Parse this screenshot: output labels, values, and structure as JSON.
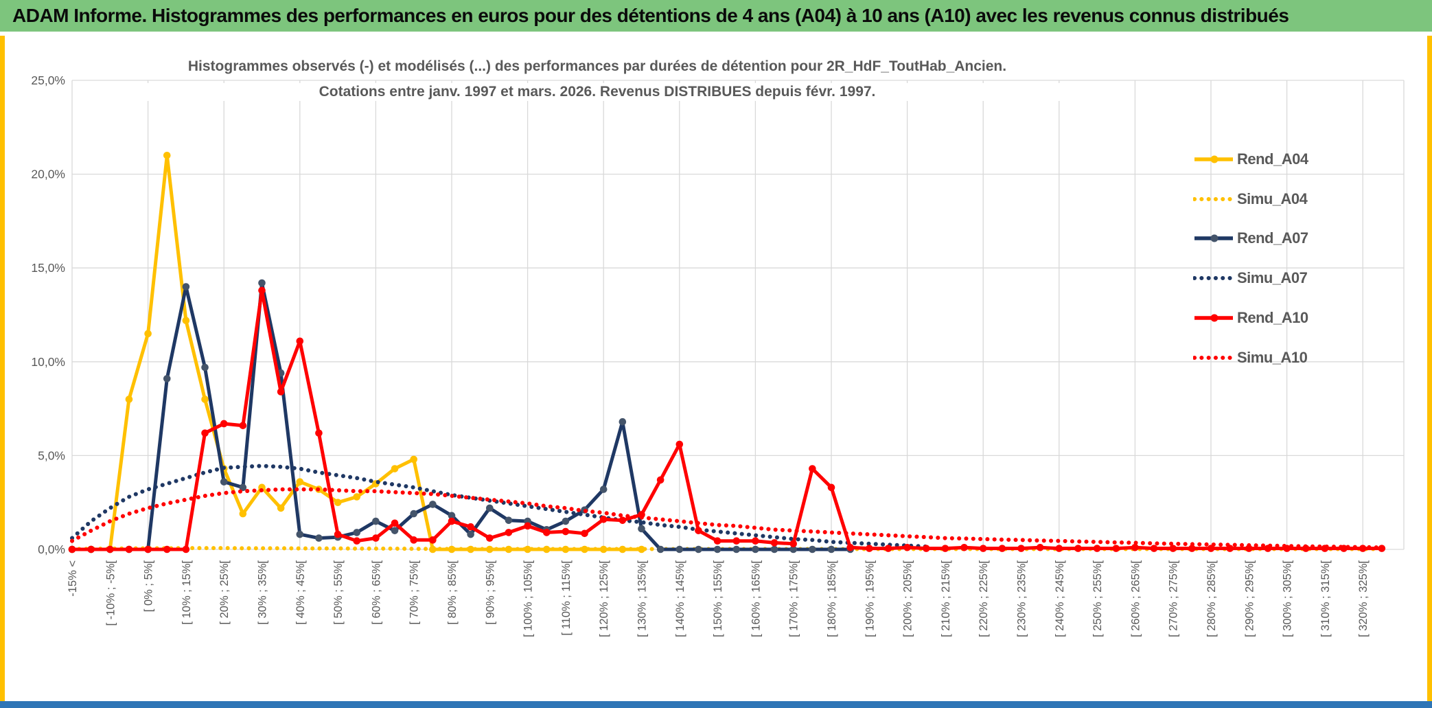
{
  "window": {
    "header_title": "ADAM Informe. Histogrammes des performances en euros pour des détentions de 4 ans (A04) à 10 ans (A10) avec les revenus connus distribués"
  },
  "colors": {
    "header_green": "#7DC57D",
    "sheet_border_gold": "#FFC000",
    "bottom_bar_blue": "#2E75B6",
    "grid_gray": "#D9D9D9",
    "text_gray": "#595959",
    "gold": "#FFC000",
    "navy": "#1F3864",
    "navy_marker": "#44546A",
    "red": "#FF0000"
  },
  "chart_data": {
    "type": "line",
    "title_line1": "Histogrammes observés (-) et modélisés (...) des performances par durées de détention pour 2R_HdF_ToutHab_Ancien.",
    "title_line2": "Cotations entre janv. 1997 et mars. 2026. Revenus DISTRIBUES depuis févr. 1997.",
    "ylim": [
      0,
      25
    ],
    "grid": true,
    "legend_position": "right",
    "ytick_labels": [
      "0,0%",
      "5,0%",
      "10,0%",
      "15,0%",
      "20,0%",
      "25,0%"
    ],
    "bin_count": 70,
    "label_every_other_bin": true,
    "x_labels": [
      "-15% <",
      "[ -10% ; -5%[",
      "[ 0% ; 5%[",
      "[ 10% ; 15%[",
      "[ 20% ; 25%[",
      "[ 30% ; 35%[",
      "[ 40% ; 45%[",
      "[ 50% ; 55%[",
      "[ 60% ; 65%[",
      "[ 70% ; 75%[",
      "[ 80% ; 85%[",
      "[ 90% ; 95%[",
      "[ 100% ; 105%[",
      "[ 110% ; 115%[",
      "[ 120% ; 125%[",
      "[ 130% ; 135%[",
      "[ 140% ; 145%[",
      "[ 150% ; 155%[",
      "[ 160% ; 165%[",
      "[ 170% ; 175%[",
      "[ 180% ; 185%[",
      "[ 190% ; 195%[",
      "[ 200% ; 205%[",
      "[ 210% ; 215%[",
      "[ 220% ; 225%[",
      "[ 230% ; 235%[",
      "[ 240% ; 245%[",
      "[ 250% ; 255%[",
      "[ 260% ; 265%[",
      "[ 270% ; 275%[",
      "[ 280% ; 285%[",
      "[ 290% ; 295%[",
      "[ 300% ; 305%[",
      "[ 310% ; 315%[",
      "[ 320% ; 325%["
    ],
    "series": [
      {
        "name": "Rend_A04",
        "style": "solid",
        "color": "#FFC000",
        "marker_color": "#FFC000",
        "values": [
          0,
          0,
          0,
          8.0,
          11.5,
          21.0,
          12.2,
          8.0,
          4.3,
          1.9,
          3.3,
          2.2,
          3.6,
          3.2,
          2.5,
          2.8,
          3.5,
          4.3,
          4.8,
          0,
          0,
          0,
          0,
          0,
          0,
          0,
          0,
          0,
          0,
          0,
          0,
          null,
          null,
          null,
          null,
          null,
          null,
          null,
          null,
          null,
          null,
          null,
          null,
          null,
          null,
          null,
          null,
          null,
          null,
          null,
          null,
          null,
          null,
          null,
          null,
          null,
          null,
          null,
          null,
          null,
          null,
          null,
          null,
          null,
          null,
          null,
          null,
          null,
          null,
          null
        ]
      },
      {
        "name": "Simu_A04",
        "style": "dotted",
        "color": "#FFC000",
        "values": [
          0.02,
          0.03,
          0.04,
          0.05,
          0.06,
          0.06,
          0.07,
          0.07,
          0.07,
          0.06,
          0.06,
          0.06,
          0.05,
          0.05,
          0.05,
          0.04,
          0.04,
          0.04,
          0.03,
          0.03,
          0.02,
          0.02,
          0.02,
          0.02,
          0.02,
          0.02,
          0.02,
          0.02,
          0.02,
          0.02,
          0.02,
          0.02,
          0.02,
          0.02,
          0.02,
          0.02,
          0.02,
          0.02,
          0.02,
          0.02,
          0.02,
          0.02,
          0.02,
          0.02,
          0.02,
          0.02,
          0.02,
          0.02,
          0.02,
          0.02,
          0.02,
          0.02,
          0.02,
          0.02,
          0.02,
          0.02,
          0.02,
          0.02,
          0.02,
          0.02,
          0.02,
          0.02,
          0.02,
          0.02,
          0.02,
          0.02,
          0.02,
          0.02,
          0.02,
          0.02
        ]
      },
      {
        "name": "Rend_A07",
        "style": "solid",
        "color": "#1F3864",
        "marker_color": "#44546A",
        "values": [
          0,
          0,
          0,
          0,
          0,
          9.1,
          14.0,
          9.7,
          3.6,
          3.3,
          14.2,
          9.4,
          0.8,
          0.6,
          0.65,
          0.9,
          1.5,
          1.0,
          1.9,
          2.4,
          1.8,
          0.8,
          2.2,
          1.55,
          1.5,
          1.05,
          1.5,
          2.1,
          3.2,
          6.8,
          1.1,
          0,
          0,
          0,
          0,
          0,
          0,
          0,
          0,
          0,
          0,
          0,
          null,
          null,
          null,
          null,
          null,
          null,
          null,
          null,
          null,
          null,
          null,
          null,
          null,
          null,
          null,
          null,
          null,
          null,
          null,
          null,
          null,
          null,
          null,
          null,
          null,
          null,
          null,
          null
        ]
      },
      {
        "name": "Simu_A07",
        "style": "dotted",
        "color": "#1F3864",
        "values": [
          0.6,
          1.5,
          2.2,
          2.8,
          3.2,
          3.5,
          3.8,
          4.1,
          4.35,
          4.4,
          4.45,
          4.4,
          4.3,
          4.1,
          3.95,
          3.8,
          3.6,
          3.45,
          3.3,
          3.1,
          2.9,
          2.75,
          2.6,
          2.45,
          2.3,
          2.15,
          2.0,
          1.85,
          1.7,
          1.55,
          1.45,
          1.3,
          1.2,
          1.05,
          0.95,
          0.85,
          0.75,
          0.65,
          0.55,
          0.5,
          0.4,
          0.35,
          0.3,
          0.25,
          0.2,
          0.15,
          null,
          null,
          null,
          null,
          null,
          null,
          null,
          null,
          null,
          null,
          null,
          null,
          null,
          null,
          null,
          null,
          null,
          null,
          null,
          null,
          null,
          null,
          null,
          null
        ]
      },
      {
        "name": "Rend_A10",
        "style": "solid",
        "color": "#FF0000",
        "marker_color": "#FF0000",
        "values": [
          0,
          0,
          0,
          0,
          0,
          0,
          0,
          6.2,
          6.7,
          6.6,
          13.8,
          8.4,
          11.1,
          6.2,
          0.8,
          0.45,
          0.6,
          1.4,
          0.5,
          0.5,
          1.5,
          1.2,
          0.6,
          0.9,
          1.25,
          0.9,
          0.95,
          0.85,
          1.6,
          1.55,
          1.85,
          3.7,
          5.6,
          1.0,
          0.45,
          0.45,
          0.45,
          0.35,
          0.3,
          4.3,
          3.3,
          0.1,
          0.05,
          0.05,
          0.1,
          0.05,
          0.05,
          0.1,
          0.05,
          0.05,
          0.05,
          0.1,
          0.05,
          0.05,
          0.05,
          0.05,
          0.1,
          0.05,
          0.05,
          0.05,
          0.05,
          0.05,
          0.05,
          0.05,
          0.05,
          0.05,
          0.05,
          0.05,
          0.05,
          0.05
        ]
      },
      {
        "name": "Simu_A10",
        "style": "dotted",
        "color": "#FF0000",
        "values": [
          0.45,
          1.0,
          1.5,
          1.9,
          2.2,
          2.45,
          2.65,
          2.85,
          3.0,
          3.1,
          3.15,
          3.2,
          3.2,
          3.2,
          3.15,
          3.1,
          3.1,
          3.05,
          3.0,
          2.95,
          2.85,
          2.75,
          2.65,
          2.55,
          2.45,
          2.3,
          2.2,
          2.05,
          1.95,
          1.8,
          1.7,
          1.6,
          1.5,
          1.4,
          1.3,
          1.25,
          1.15,
          1.05,
          1.0,
          0.95,
          0.9,
          0.85,
          0.8,
          0.75,
          0.7,
          0.65,
          0.6,
          0.58,
          0.55,
          0.52,
          0.5,
          0.47,
          0.45,
          0.42,
          0.4,
          0.37,
          0.35,
          0.32,
          0.3,
          0.28,
          0.26,
          0.24,
          0.22,
          0.2,
          0.18,
          0.16,
          0.15,
          0.13,
          0.12,
          0.1
        ]
      }
    ]
  }
}
